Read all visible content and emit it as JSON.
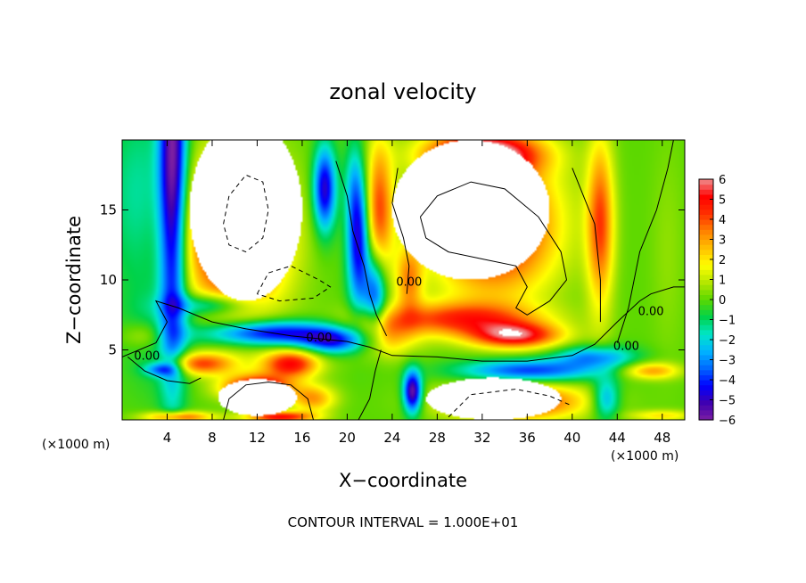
{
  "chart_data": {
    "type": "heatmap",
    "title": "zonal velocity",
    "xlabel": "X−coordinate",
    "ylabel": "Z−coordinate",
    "x_unit": "(×1000 m)",
    "y_unit": "(×1000 m)",
    "xlim": [
      0,
      50
    ],
    "ylim": [
      0,
      20
    ],
    "x_ticks": [
      4,
      8,
      12,
      16,
      20,
      24,
      28,
      32,
      36,
      40,
      44,
      48
    ],
    "y_ticks": [
      5,
      10,
      15
    ],
    "colorbar": {
      "range": [
        -6,
        6
      ],
      "ticks": [
        "6",
        "5",
        "4",
        "3",
        "2",
        "1",
        "0",
        "−1",
        "−2",
        "−3",
        "−4",
        "−5",
        "−6"
      ],
      "colors": [
        "#7b1fa2",
        "#3f00b0",
        "#0000ff",
        "#0066ff",
        "#00b4ff",
        "#00e6c8",
        "#00d24a",
        "#5ad800",
        "#b4e600",
        "#ffff00",
        "#ffc000",
        "#ff8000",
        "#ff3000",
        "#ff0000",
        "#f08c8c"
      ]
    },
    "contour_label": "0.00",
    "contour_interval_text": "CONTOUR INTERVAL = 1.000E+01",
    "fields": [
      {
        "x": 4.5,
        "y": 18,
        "sx": 1.2,
        "sy": 14,
        "v": -6
      },
      {
        "x": 3.2,
        "y": 6,
        "sx": 3,
        "sy": 4,
        "v": -1
      },
      {
        "x": 1.5,
        "y": 16,
        "sx": 3,
        "sy": 7,
        "v": -1.5
      },
      {
        "x": 10,
        "y": 13,
        "sx": 4.5,
        "sy": 5.5,
        "v": 6
      },
      {
        "x": 8,
        "y": 8.2,
        "sx": 3.5,
        "sy": 0.8,
        "v": -3
      },
      {
        "x": 13,
        "y": 6.2,
        "sx": 6,
        "sy": 0.9,
        "v": -5
      },
      {
        "x": 19,
        "y": 5.6,
        "sx": 3,
        "sy": 0.9,
        "v": -4
      },
      {
        "x": 18,
        "y": 16.5,
        "sx": 1,
        "sy": 3,
        "v": -5
      },
      {
        "x": 21,
        "y": 13,
        "sx": 1,
        "sy": 5,
        "v": -5
      },
      {
        "x": 22.5,
        "y": 9,
        "sx": 1,
        "sy": 3,
        "v": -4
      },
      {
        "x": 20.5,
        "y": 17,
        "sx": 0.8,
        "sy": 3,
        "v": -1
      },
      {
        "x": 22.8,
        "y": 15,
        "sx": 1.3,
        "sy": 5,
        "v": 4
      },
      {
        "x": 25.5,
        "y": 10,
        "sx": 1.2,
        "sy": 2.5,
        "v": 3
      },
      {
        "x": 30,
        "y": 7.2,
        "sx": 7,
        "sy": 1.2,
        "v": 4
      },
      {
        "x": 35,
        "y": 6,
        "sx": 4,
        "sy": 0.9,
        "v": 5
      },
      {
        "x": 23,
        "y": 6,
        "sx": 3,
        "sy": 1.5,
        "v": 3
      },
      {
        "x": 33,
        "y": 14,
        "sx": 5.5,
        "sy": 5,
        "v": 6
      },
      {
        "x": 32,
        "y": 19,
        "sx": 5,
        "sy": 1.5,
        "v": 6
      },
      {
        "x": 36,
        "y": 3.5,
        "sx": 6,
        "sy": 0.8,
        "v": -4
      },
      {
        "x": 42,
        "y": 4.5,
        "sx": 3.5,
        "sy": 0.8,
        "v": -3
      },
      {
        "x": 25.8,
        "y": 2,
        "sx": 0.8,
        "sy": 1.5,
        "v": -6
      },
      {
        "x": 35,
        "y": 1.3,
        "sx": 6,
        "sy": 1.3,
        "v": 5
      },
      {
        "x": 43,
        "y": 1.5,
        "sx": 1.2,
        "sy": 1.5,
        "v": -3
      },
      {
        "x": 42.5,
        "y": 14,
        "sx": 1.2,
        "sy": 6,
        "v": 4
      },
      {
        "x": 48.5,
        "y": 12,
        "sx": 1.5,
        "sy": 8,
        "v": 0.5
      },
      {
        "x": 47,
        "y": 3.5,
        "sx": 2.5,
        "sy": 0.6,
        "v": 3
      },
      {
        "x": 48,
        "y": 0.3,
        "sx": 3,
        "sy": 0.4,
        "v": 2
      },
      {
        "x": 7,
        "y": 4,
        "sx": 3,
        "sy": 0.8,
        "v": 4
      },
      {
        "x": 15,
        "y": 4,
        "sx": 2.5,
        "sy": 1,
        "v": 5
      },
      {
        "x": 12,
        "y": 2.3,
        "sx": 3,
        "sy": 0.9,
        "v": 6
      },
      {
        "x": 3.5,
        "y": 3.6,
        "sx": 1.5,
        "sy": 0.5,
        "v": -3
      },
      {
        "x": 2,
        "y": 6,
        "sx": 2,
        "sy": 1,
        "v": 1.5
      },
      {
        "x": 5,
        "y": 0.2,
        "sx": 3,
        "sy": 0.4,
        "v": 4
      },
      {
        "x": 14,
        "y": 0.2,
        "sx": 3,
        "sy": 0.4,
        "v": 5
      },
      {
        "x": 17,
        "y": 1.5,
        "sx": 2,
        "sy": 1,
        "v": 3
      }
    ],
    "masks": [
      {
        "x": 11,
        "y": 15,
        "rx": 5,
        "ry": 6.5
      },
      {
        "x": 31,
        "y": 15,
        "rx": 7,
        "ry": 5
      },
      {
        "x": 33,
        "y": 1.5,
        "rx": 6,
        "ry": 1.5
      },
      {
        "x": 12,
        "y": 1.6,
        "rx": 3.5,
        "ry": 1.3
      }
    ],
    "contours": [
      {
        "style": "solid",
        "points": [
          [
            0,
            4.5
          ],
          [
            3,
            5.5
          ],
          [
            4,
            7
          ],
          [
            3,
            8.5
          ],
          [
            5,
            8
          ],
          [
            8,
            7
          ],
          [
            11,
            6.5
          ],
          [
            15,
            6
          ],
          [
            20,
            5.6
          ],
          [
            22,
            5.2
          ],
          [
            24,
            4.6
          ],
          [
            28,
            4.5
          ],
          [
            32,
            4.2
          ],
          [
            36,
            4.2
          ],
          [
            40,
            4.6
          ],
          [
            42,
            5.4
          ],
          [
            44,
            7
          ],
          [
            46,
            8.5
          ],
          [
            47,
            9
          ],
          [
            49,
            9.5
          ],
          [
            50,
            9.5
          ]
        ]
      },
      {
        "style": "solid",
        "points": [
          [
            19,
            18.5
          ],
          [
            20,
            16
          ],
          [
            20.5,
            13.5
          ],
          [
            21.5,
            11
          ],
          [
            22,
            9
          ],
          [
            22.6,
            7.5
          ],
          [
            23.5,
            6
          ]
        ]
      },
      {
        "style": "solid",
        "points": [
          [
            24.5,
            18
          ],
          [
            24,
            15.5
          ],
          [
            25,
            13
          ],
          [
            25.5,
            11
          ],
          [
            25.3,
            9
          ]
        ]
      },
      {
        "style": "solid",
        "points": [
          [
            26.5,
            14.5
          ],
          [
            28,
            16
          ],
          [
            31,
            17
          ],
          [
            34,
            16.5
          ],
          [
            37,
            14.5
          ],
          [
            39,
            12
          ],
          [
            39.5,
            10
          ],
          [
            38,
            8.5
          ],
          [
            36,
            7.5
          ],
          [
            35,
            8
          ],
          [
            36,
            9.5
          ],
          [
            35,
            11
          ],
          [
            32,
            11.5
          ],
          [
            29,
            12
          ],
          [
            27,
            13
          ],
          [
            26.5,
            14.5
          ]
        ]
      },
      {
        "style": "solid",
        "points": [
          [
            44,
            5.5
          ],
          [
            45,
            8
          ],
          [
            46,
            12
          ],
          [
            47.5,
            15
          ],
          [
            48.5,
            18
          ],
          [
            49,
            20
          ]
        ]
      },
      {
        "style": "solid",
        "points": [
          [
            40,
            18
          ],
          [
            41,
            16
          ],
          [
            42,
            14
          ],
          [
            42.5,
            10
          ],
          [
            42.5,
            7
          ]
        ]
      },
      {
        "style": "solid",
        "points": [
          [
            0.5,
            4.5
          ],
          [
            2,
            3.5
          ],
          [
            4,
            2.8
          ],
          [
            6,
            2.6
          ],
          [
            7,
            3
          ]
        ]
      },
      {
        "style": "solid",
        "points": [
          [
            9,
            0
          ],
          [
            9.5,
            1.5
          ],
          [
            11,
            2.5
          ],
          [
            13,
            2.7
          ],
          [
            15,
            2.5
          ],
          [
            16.5,
            1.5
          ],
          [
            17,
            0
          ]
        ]
      },
      {
        "style": "solid",
        "points": [
          [
            21,
            0
          ],
          [
            22,
            1.5
          ],
          [
            22.5,
            3.5
          ],
          [
            23,
            5
          ]
        ]
      },
      {
        "style": "dashed",
        "points": [
          [
            9,
            14
          ],
          [
            9.5,
            16
          ],
          [
            11,
            17.5
          ],
          [
            12.5,
            17
          ],
          [
            13,
            15
          ],
          [
            12.5,
            13
          ],
          [
            11,
            12
          ],
          [
            9.5,
            12.5
          ],
          [
            9,
            14
          ]
        ]
      },
      {
        "style": "dashed",
        "points": [
          [
            12,
            9
          ],
          [
            13,
            10.5
          ],
          [
            15,
            11
          ],
          [
            17.5,
            10
          ],
          [
            18.5,
            9.5
          ],
          [
            17,
            8.7
          ],
          [
            14,
            8.5
          ],
          [
            12,
            9
          ]
        ]
      },
      {
        "style": "dashed",
        "points": [
          [
            29,
            0.2
          ],
          [
            31,
            1.8
          ],
          [
            35,
            2.2
          ],
          [
            38,
            1.7
          ],
          [
            40,
            1
          ]
        ]
      }
    ],
    "contour_label_positions": [
      [
        2.2,
        4.3
      ],
      [
        17.5,
        5.6
      ],
      [
        25.5,
        9.6
      ],
      [
        44.8,
        5
      ],
      [
        47,
        7.5
      ]
    ]
  },
  "colors": {
    "background": "#ffffff",
    "masked": "#ffffff"
  }
}
